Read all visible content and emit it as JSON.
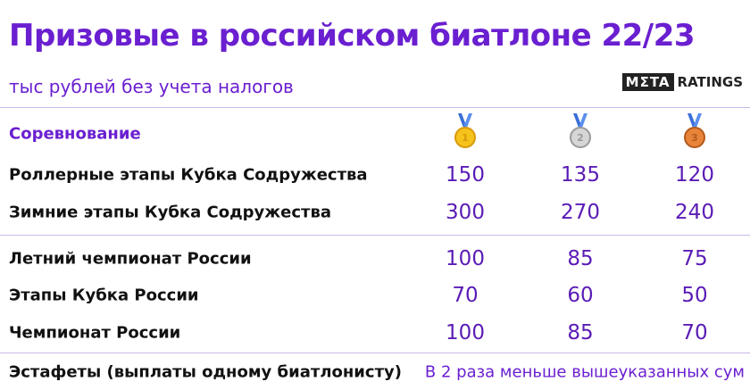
{
  "header": {
    "title": "Призовые в российском биатлоне 22/23",
    "subtitle": "тыс рублей без учета налогов",
    "logo": {
      "left": "MΣTA",
      "right": "RATINGS"
    }
  },
  "table": {
    "column_header": "Соревнование",
    "medals": [
      1,
      2,
      3
    ],
    "groups": [
      {
        "rows": [
          {
            "name": "Роллерные этапы Кубка Содружества",
            "values": [
              150,
              135,
              120
            ]
          },
          {
            "name": "Зимние этапы Кубка Содружества",
            "values": [
              300,
              270,
              240
            ]
          }
        ]
      },
      {
        "rows": [
          {
            "name": "Летний чемпионат России",
            "values": [
              100,
              85,
              75
            ]
          },
          {
            "name": "Этапы Кубка России",
            "values": [
              70,
              60,
              50
            ]
          },
          {
            "name": "Чемпионат России",
            "values": [
              100,
              85,
              70
            ]
          }
        ]
      }
    ],
    "footer": {
      "name": "Эстафеты (выплаты одному биатлонисту)",
      "note": "В 2 раза меньше вышеуказанных сум"
    }
  }
}
